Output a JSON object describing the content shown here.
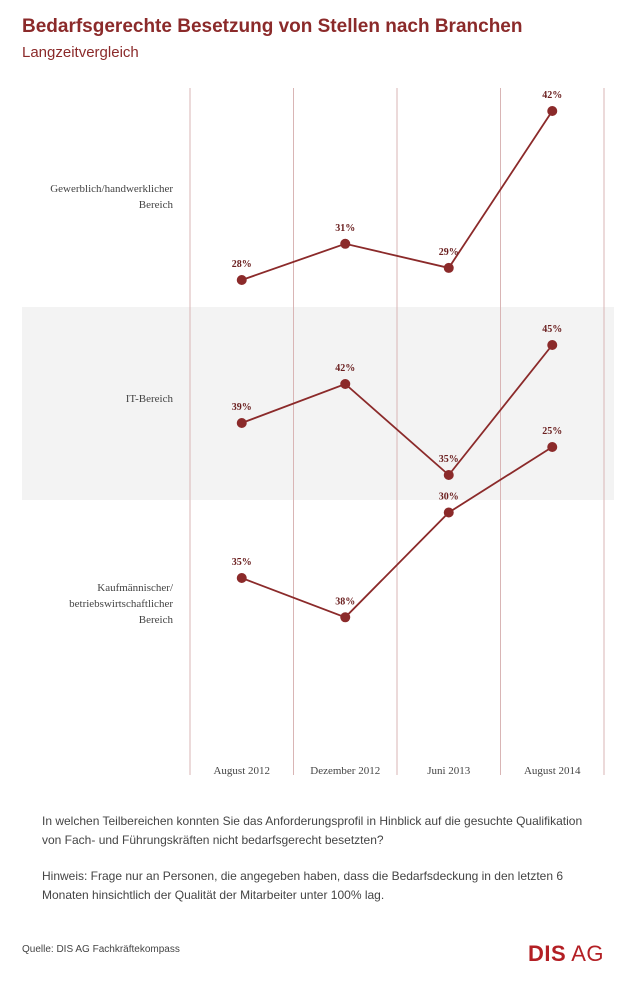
{
  "header": {
    "title": "Bedarfsgerechte Besetzung von Stellen nach Branchen",
    "subtitle": "Langzeitvergleich"
  },
  "chart_data": {
    "type": "line",
    "title": "Bedarfsgerechte Besetzung von Stellen nach Branchen",
    "subtitle": "Langzeitvergleich",
    "x": [
      "August 2012",
      "Dezember 2012",
      "Juni 2013",
      "August 2014"
    ],
    "unit": "%",
    "series": [
      {
        "name": "Gewerblich/handwerklicher Bereich",
        "label_lines": [
          "Gewerblich/handwerklicher",
          "Bereich"
        ],
        "values": [
          28,
          31,
          29,
          42
        ],
        "shaded": false
      },
      {
        "name": "IT-Bereich",
        "label_lines": [
          "IT-Bereich"
        ],
        "values": [
          39,
          42,
          35,
          45
        ],
        "shaded": true
      },
      {
        "name": "Kaufmännischer/ betriebswirtschaftlicher Bereich",
        "label_lines": [
          "Kaufmännischer/",
          "betriebswirtschaftlicher",
          "Bereich"
        ],
        "values": [
          35,
          38,
          30,
          25
        ],
        "shaded": false
      }
    ],
    "colors": {
      "line": "#8b2a2a",
      "marker": "#8b2a2a",
      "grid": "#d9b5b5",
      "band": "#f3f3f3"
    }
  },
  "footer": {
    "question": "In welchen Teilbereichen konnten Sie das Anforderungsprofil in Hinblick auf die gesuchte Qualifikation von Fach- und Führungskräften nicht bedarfsgerecht besetzten?",
    "hint": "Hinweis: Frage nur an Personen, die angegeben haben, dass die Bedarfsdeckung in den letzten 6 Monaten hinsichtlich der Qualität der Mitarbeiter unter 100% lag.",
    "source": "Quelle:  DIS AG Fachkräftekompass",
    "logo_main": "DIS",
    "logo_suffix": "AG"
  }
}
